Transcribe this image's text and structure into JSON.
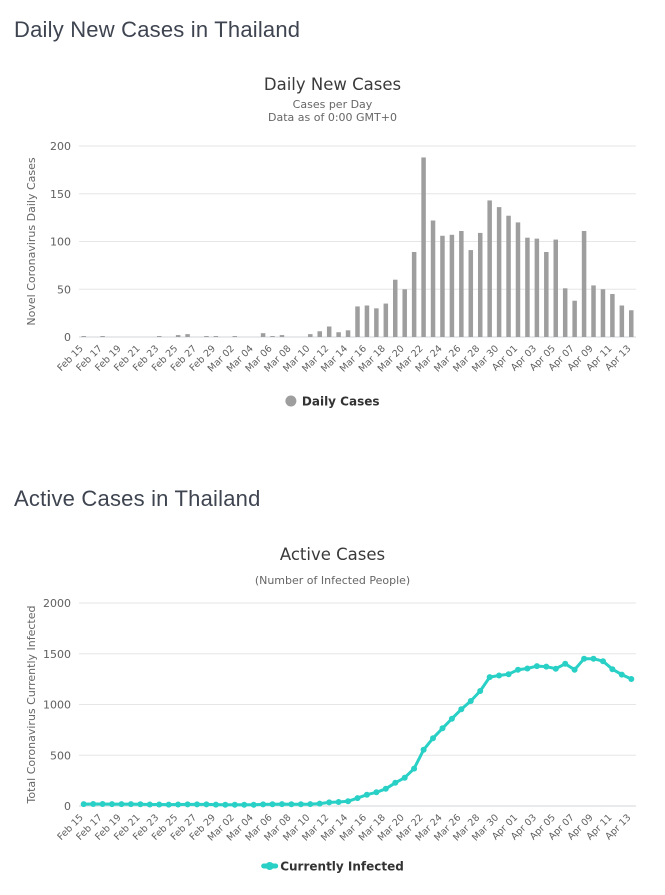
{
  "page": {
    "section1_heading": "Daily New Cases in Thailand",
    "section2_heading": "Active Cases in Thailand"
  },
  "colors": {
    "bar": "#9e9e9e",
    "line": "#29d0c6",
    "grid": "#e6e6e6",
    "axis_line": "#d2d6da",
    "heading_text": "#3e4450",
    "title_text": "#3a3a3a",
    "subtitle_text": "#666666",
    "tick_text": "#606060",
    "legend_text": "#333333",
    "background": "#ffffff"
  },
  "chart_data": [
    {
      "type": "bar",
      "name": "daily-new-cases",
      "title": "Daily New Cases",
      "subtitle": [
        "Cases per Day",
        "Data as of 0:00 GMT+0"
      ],
      "ylabel": "Novel Coronavirus Daily Cases",
      "xlabel": "",
      "ylim": [
        0,
        200
      ],
      "yticks": [
        0,
        50,
        100,
        150,
        200
      ],
      "grid": true,
      "legend": "Daily Cases",
      "legend_position": "bottom-center",
      "xtick_step": 2,
      "categories": [
        "Feb 15",
        "Feb 16",
        "Feb 17",
        "Feb 18",
        "Feb 19",
        "Feb 20",
        "Feb 21",
        "Feb 22",
        "Feb 23",
        "Feb 24",
        "Feb 25",
        "Feb 26",
        "Feb 27",
        "Feb 28",
        "Feb 29",
        "Mar 01",
        "Mar 02",
        "Mar 03",
        "Mar 04",
        "Mar 05",
        "Mar 06",
        "Mar 07",
        "Mar 08",
        "Mar 09",
        "Mar 10",
        "Mar 11",
        "Mar 12",
        "Mar 13",
        "Mar 14",
        "Mar 15",
        "Mar 16",
        "Mar 17",
        "Mar 18",
        "Mar 19",
        "Mar 20",
        "Mar 21",
        "Mar 22",
        "Mar 23",
        "Mar 24",
        "Mar 25",
        "Mar 26",
        "Mar 27",
        "Mar 28",
        "Mar 29",
        "Mar 30",
        "Mar 31",
        "Apr 01",
        "Apr 02",
        "Apr 03",
        "Apr 04",
        "Apr 05",
        "Apr 06",
        "Apr 07",
        "Apr 08",
        "Apr 09",
        "Apr 10",
        "Apr 11",
        "Apr 12",
        "Apr 13"
      ],
      "values": [
        1,
        0,
        1,
        0,
        0,
        0,
        0,
        0,
        1,
        0,
        2,
        3,
        0,
        1,
        1,
        0,
        1,
        0,
        0,
        4,
        1,
        2,
        0,
        0,
        3,
        6,
        11,
        5,
        7,
        32,
        33,
        30,
        35,
        60,
        50,
        89,
        188,
        122,
        106,
        107,
        111,
        91,
        109,
        143,
        136,
        127,
        120,
        104,
        103,
        89,
        102,
        51,
        38,
        111,
        54,
        50,
        45,
        33,
        28
      ]
    },
    {
      "type": "line",
      "name": "active-cases",
      "title": "Active Cases",
      "subtitle": [
        "(Number of Infected People)"
      ],
      "ylabel": "Total Coronavirus Currently Infected",
      "xlabel": "",
      "ylim": [
        0,
        2000
      ],
      "yticks": [
        0,
        500,
        1000,
        1500,
        2000
      ],
      "grid": true,
      "legend": "Currently Infected",
      "legend_position": "bottom-center",
      "xtick_step": 2,
      "categories": [
        "Feb 15",
        "Feb 16",
        "Feb 17",
        "Feb 18",
        "Feb 19",
        "Feb 20",
        "Feb 21",
        "Feb 22",
        "Feb 23",
        "Feb 24",
        "Feb 25",
        "Feb 26",
        "Feb 27",
        "Feb 28",
        "Feb 29",
        "Mar 01",
        "Mar 02",
        "Mar 03",
        "Mar 04",
        "Mar 05",
        "Mar 06",
        "Mar 07",
        "Mar 08",
        "Mar 09",
        "Mar 10",
        "Mar 11",
        "Mar 12",
        "Mar 13",
        "Mar 14",
        "Mar 15",
        "Mar 16",
        "Mar 17",
        "Mar 18",
        "Mar 19",
        "Mar 20",
        "Mar 21",
        "Mar 22",
        "Mar 23",
        "Mar 24",
        "Mar 25",
        "Mar 26",
        "Mar 27",
        "Mar 28",
        "Mar 29",
        "Mar 30",
        "Mar 31",
        "Apr 01",
        "Apr 02",
        "Apr 03",
        "Apr 04",
        "Apr 05",
        "Apr 06",
        "Apr 07",
        "Apr 08",
        "Apr 09",
        "Apr 10",
        "Apr 11",
        "Apr 12",
        "Apr 13"
      ],
      "values": [
        19,
        20,
        20,
        19,
        19,
        19,
        18,
        15,
        15,
        14,
        15,
        16,
        16,
        16,
        14,
        12,
        12,
        12,
        12,
        16,
        17,
        19,
        18,
        18,
        19,
        24,
        35,
        39,
        46,
        78,
        111,
        135,
        169,
        229,
        279,
        368,
        554,
        668,
        766,
        860,
        953,
        1034,
        1133,
        1270,
        1286,
        1299,
        1343,
        1355,
        1378,
        1373,
        1353,
        1401,
        1343,
        1451,
        1451,
        1427,
        1348,
        1295,
        1251
      ]
    }
  ]
}
